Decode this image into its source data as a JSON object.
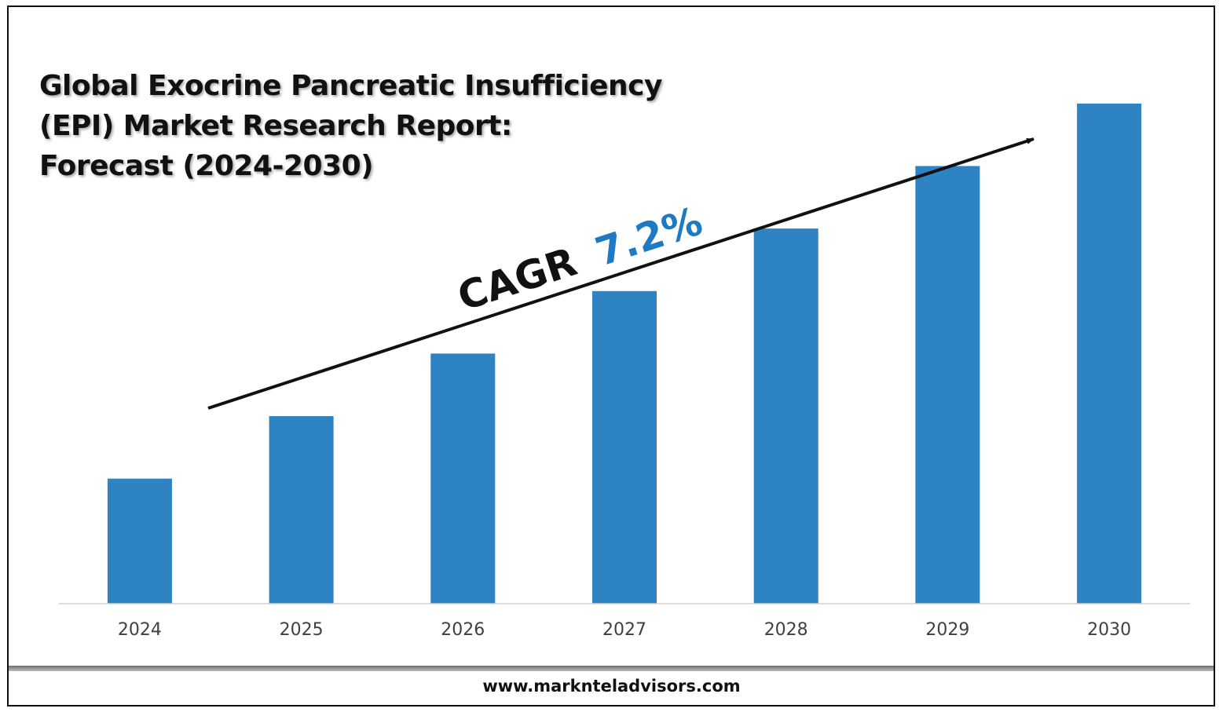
{
  "colors": {
    "bar": "#2e83c3",
    "arrow": "#111111",
    "cagr_value": "#1f7ac4",
    "axis": "#d0d0d0",
    "tick_label": "#404040"
  },
  "chart_data": {
    "type": "bar",
    "title": "Global Exocrine Pancreatic Insufficiency (EPI) Market Research Report: Forecast (2024-2030)",
    "title_lines": [
      "Global Exocrine Pancreatic Insufficiency",
      "(EPI) Market Research Report:",
      "Forecast (2024-2030)"
    ],
    "categories": [
      "2024",
      "2025",
      "2026",
      "2027",
      "2028",
      "2029",
      "2030"
    ],
    "values": [
      1.0,
      1.5,
      2.0,
      2.5,
      3.0,
      3.5,
      4.0
    ],
    "ylim": [
      0,
      4.2
    ],
    "xlabel": "",
    "ylabel": "",
    "grid": false,
    "legend": "none",
    "annotation": {
      "prefix": "CAGR",
      "value": "7.2%"
    }
  },
  "footer": {
    "url": "www.marknteladvisors.com"
  }
}
